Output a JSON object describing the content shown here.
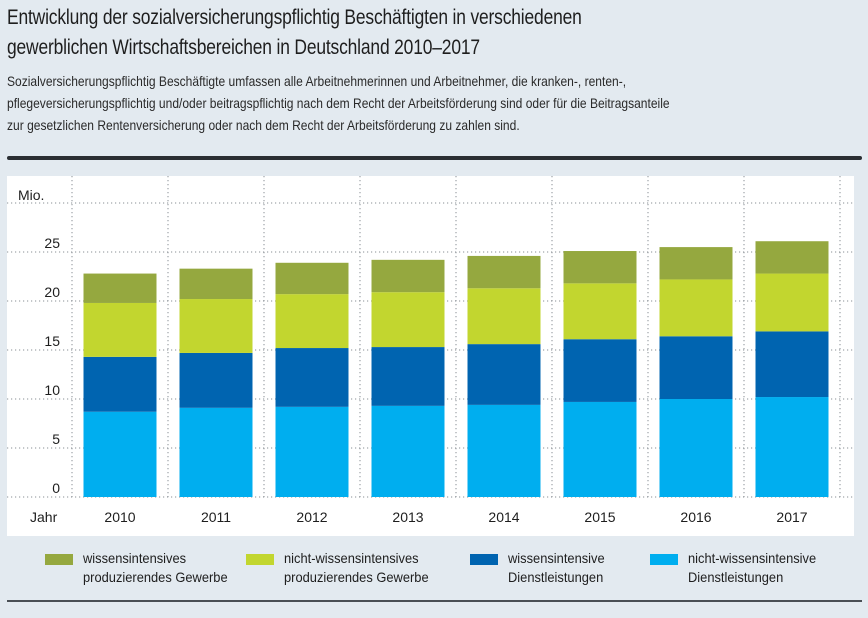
{
  "title_lines": [
    "Entwicklung der sozialversicherungspflichtig Beschäftigten in verschiedenen",
    "gewerblichen Wirtschaftsbereichen in Deutschland 2010–2017"
  ],
  "subtitle_lines": [
    "Sozialversicherungspflichtig Beschäftigte umfassen alle Arbeitnehmerinnen und Arbeitnehmer, die kranken-, renten-,",
    "pflegeversicherungspflichtig und/oder beitragspflichtig nach dem Recht der Arbeitsförderung sind oder für die Beitragsanteile",
    "zur gesetzlichen Rentenversicherung oder nach dem Recht der Arbeitsförderung zu zahlen sind."
  ],
  "chart_data": {
    "type": "bar",
    "stacked": true,
    "title": "Entwicklung der sozialversicherungspflichtig Beschäftigten in verschiedenen gewerblichen Wirtschaftsbereichen in Deutschland 2010–2017",
    "xlabel": "Jahr",
    "ylabel": "Mio.",
    "ylim": [
      0,
      30
    ],
    "yticks": [
      0,
      5,
      10,
      15,
      20,
      25
    ],
    "grid": true,
    "legend_position": "bottom",
    "categories": [
      "2010",
      "2011",
      "2012",
      "2013",
      "2014",
      "2015",
      "2016",
      "2017"
    ],
    "series": [
      {
        "name": "nicht-wissensintensive Dienstleistungen",
        "legend_lines": [
          "nicht-wissensintensive",
          "Dienstleistungen"
        ],
        "color": "#00aeef",
        "values": [
          8.7,
          9.1,
          9.2,
          9.3,
          9.4,
          9.7,
          10.0,
          10.2
        ]
      },
      {
        "name": "wissensintensive Dienstleistungen",
        "legend_lines": [
          "wissensintensive",
          "Dienstleistungen"
        ],
        "color": "#0064b0",
        "values": [
          5.6,
          5.6,
          6.0,
          6.0,
          6.2,
          6.4,
          6.4,
          6.7
        ]
      },
      {
        "name": "nicht-wissensintensives produzierendes Gewerbe",
        "legend_lines": [
          "nicht-wissensintensives",
          "produzierendes Gewerbe"
        ],
        "color": "#c2d62f",
        "values": [
          5.5,
          5.5,
          5.5,
          5.6,
          5.7,
          5.7,
          5.8,
          5.9
        ]
      },
      {
        "name": "wissensintensives produzierendes Gewerbe",
        "legend_lines": [
          "wissensintensives",
          "produzierendes Gewerbe"
        ],
        "color": "#95a83f",
        "values": [
          3.0,
          3.1,
          3.2,
          3.3,
          3.3,
          3.3,
          3.3,
          3.3
        ]
      }
    ],
    "legend_order": [
      3,
      2,
      1,
      0
    ]
  }
}
